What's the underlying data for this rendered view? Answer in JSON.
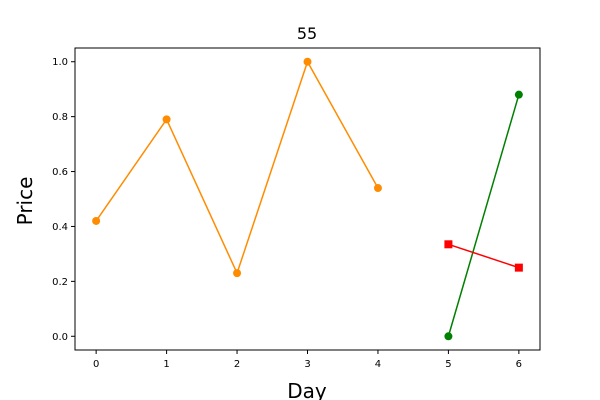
{
  "chart_data": {
    "type": "line",
    "title": "55",
    "xlabel": "Day",
    "ylabel": "Price",
    "xlim": [
      -0.3,
      6.3
    ],
    "ylim": [
      -0.05,
      1.05
    ],
    "xticks": [
      0,
      1,
      2,
      3,
      4,
      5,
      6
    ],
    "xtick_labels": [
      "0",
      "1",
      "2",
      "3",
      "4",
      "5",
      "6"
    ],
    "yticks": [
      0.0,
      0.2,
      0.4,
      0.6,
      0.8,
      1.0
    ],
    "ytick_labels": [
      "0.0",
      "0.2",
      "0.4",
      "0.6",
      "0.8",
      "1.0"
    ],
    "grid": false,
    "series": [
      {
        "x": [
          0,
          1,
          2,
          3,
          4
        ],
        "y": [
          0.42,
          0.79,
          0.23,
          1.0,
          0.54
        ],
        "color": "#ff8c00",
        "marker": "circle"
      },
      {
        "x": [
          5,
          6
        ],
        "y": [
          0.0,
          0.88
        ],
        "color": "#008000",
        "marker": "circle"
      },
      {
        "x": [
          5,
          6
        ],
        "y": [
          0.335,
          0.25
        ],
        "color": "#ff0000",
        "marker": "square"
      }
    ]
  }
}
